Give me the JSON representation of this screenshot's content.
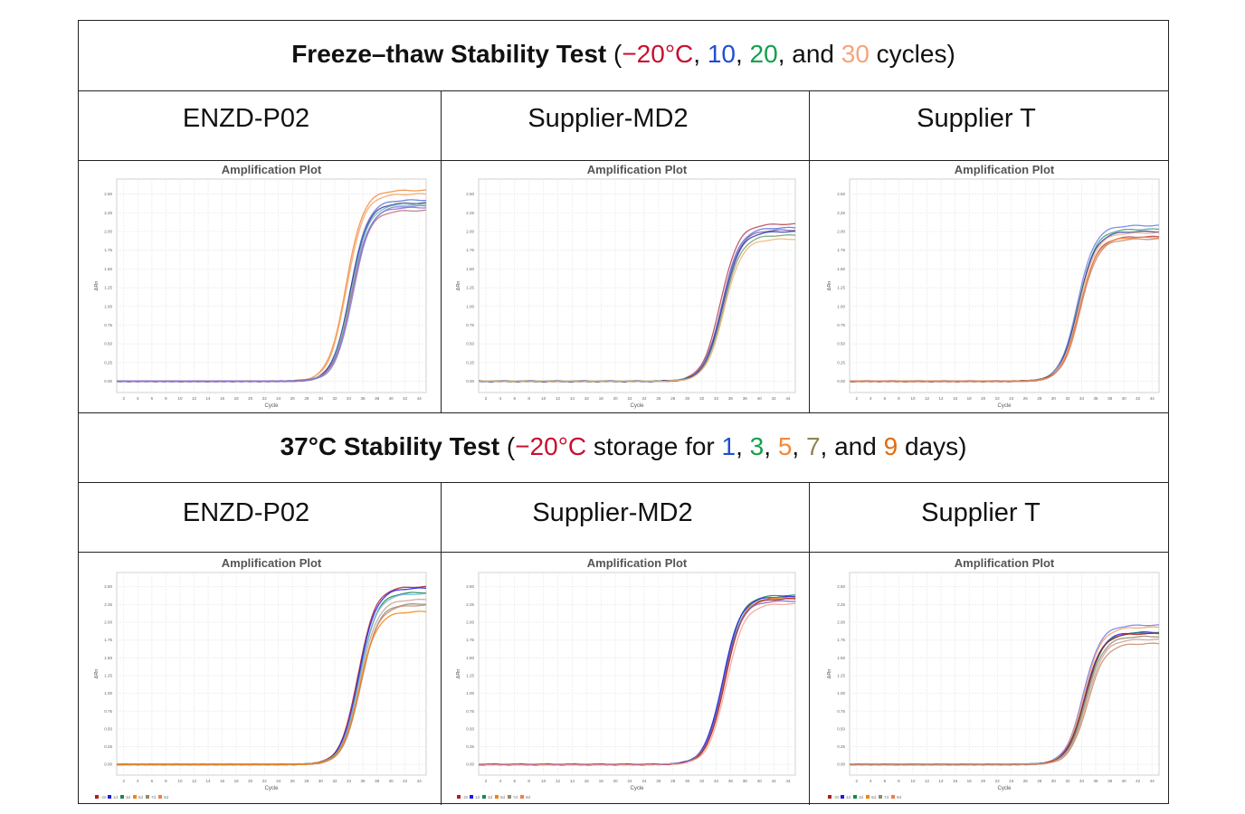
{
  "section1": {
    "bold": "Freeze–thaw Stability Test",
    "open": " (",
    "temp": "−20°C",
    "sep1": ", ",
    "v1": "10",
    "sep2": ", ",
    "v2": "20",
    "sep3": ", and ",
    "v3": "30",
    "tail": " cycles)",
    "colors": {
      "temp": "#c8102e",
      "v1": "#1f4fd1",
      "v2": "#12a14b",
      "v3": "#f4a57c"
    }
  },
  "section2": {
    "bold": "37°C Stability Test",
    "open": " (",
    "temp": "−20°C",
    "mid": " storage for ",
    "v1": "1",
    "sep1": ", ",
    "v2": "3",
    "sep2": ", ",
    "v3": "5",
    "sep3": ", ",
    "v4": "7",
    "sep4": ", and ",
    "v5": "9",
    "tail": " days)",
    "colors": {
      "temp": "#c8102e",
      "v1": "#1f4fd1",
      "v2": "#12a14b",
      "v3": "#f4883a",
      "v4": "#8e8458",
      "v5": "#e06c10"
    }
  },
  "products": [
    "ENZD-P02",
    "Supplier-MD2",
    "Supplier T"
  ],
  "chart_data": [
    {
      "type": "line",
      "title": "Amplification Plot",
      "xlabel": "Cycle",
      "ylabel": "ΔRn",
      "xlim": [
        1,
        45
      ],
      "ylim": [
        -0.15,
        2.7
      ],
      "xticks": [
        "2",
        "4",
        "6",
        "8",
        "10",
        "12",
        "14",
        "16",
        "18",
        "20",
        "22",
        "24",
        "26",
        "28",
        "30",
        "32",
        "34",
        "36",
        "38",
        "40",
        "42",
        "44"
      ],
      "yticks": [
        "0.00",
        "0.25",
        "0.50",
        "0.75",
        "1.00",
        "1.25",
        "1.50",
        "1.75",
        "2.00",
        "2.25",
        "2.50"
      ],
      "grid": true,
      "product": "ENZD-P02",
      "test": "freeze-thaw",
      "series": [
        {
          "color": "#f4883a",
          "ct": 33.6,
          "plateau": 2.55
        },
        {
          "color": "#f4a060",
          "ct": 33.7,
          "plateau": 2.5
        },
        {
          "color": "#5b6fd8",
          "ct": 34.2,
          "plateau": 2.42
        },
        {
          "color": "#2a3a9c",
          "ct": 34.2,
          "plateau": 2.38
        },
        {
          "color": "#6fb89a",
          "ct": 34.3,
          "plateau": 2.36
        },
        {
          "color": "#8a6fd0",
          "ct": 34.4,
          "plateau": 2.32
        },
        {
          "color": "#b5727a",
          "ct": 34.4,
          "plateau": 2.28
        },
        {
          "color": "#7a7ae8",
          "ct": 34.6,
          "plateau": 2.34
        }
      ]
    },
    {
      "type": "line",
      "title": "Amplification Plot",
      "xlabel": "Cycle",
      "ylabel": "ΔRn",
      "xlim": [
        1,
        45
      ],
      "ylim": [
        -0.15,
        2.7
      ],
      "xticks": [
        "2",
        "4",
        "6",
        "8",
        "10",
        "12",
        "14",
        "16",
        "18",
        "20",
        "22",
        "24",
        "26",
        "28",
        "30",
        "32",
        "34",
        "36",
        "38",
        "40",
        "42",
        "44"
      ],
      "yticks": [
        "0.00",
        "0.25",
        "0.50",
        "0.75",
        "1.00",
        "1.25",
        "1.50",
        "1.75",
        "2.00",
        "2.25",
        "2.50"
      ],
      "grid": true,
      "product": "Supplier-MD2",
      "test": "freeze-thaw",
      "series": [
        {
          "color": "#b5424e",
          "ct": 34.6,
          "plateau": 2.1
        },
        {
          "color": "#5b6fd8",
          "ct": 34.8,
          "plateau": 2.05
        },
        {
          "color": "#7a5ab8",
          "ct": 34.8,
          "plateau": 2.02
        },
        {
          "color": "#2a3a9c",
          "ct": 34.9,
          "plateau": 2.0
        },
        {
          "color": "#6fa06a",
          "ct": 35.0,
          "plateau": 1.95
        },
        {
          "color": "#f4b070",
          "ct": 35.1,
          "plateau": 1.9
        }
      ]
    },
    {
      "type": "line",
      "title": "Amplification Plot",
      "xlabel": "Cycle",
      "ylabel": "ΔRn",
      "xlim": [
        1,
        45
      ],
      "ylim": [
        -0.15,
        2.7
      ],
      "xticks": [
        "2",
        "4",
        "6",
        "8",
        "10",
        "12",
        "14",
        "16",
        "18",
        "20",
        "22",
        "24",
        "26",
        "28",
        "30",
        "32",
        "34",
        "36",
        "38",
        "40",
        "42",
        "44"
      ],
      "yticks": [
        "0.00",
        "0.25",
        "0.50",
        "0.75",
        "1.00",
        "1.25",
        "1.50",
        "1.75",
        "2.00",
        "2.25",
        "2.50"
      ],
      "grid": true,
      "product": "Supplier T",
      "test": "freeze-thaw",
      "series": [
        {
          "color": "#6f7ae8",
          "ct": 33.4,
          "plateau": 2.08
        },
        {
          "color": "#3aa070",
          "ct": 33.5,
          "plateau": 2.03
        },
        {
          "color": "#2a3a9c",
          "ct": 33.5,
          "plateau": 2.0
        },
        {
          "color": "#f4b090",
          "ct": 33.6,
          "plateau": 1.98
        },
        {
          "color": "#b5424e",
          "ct": 33.7,
          "plateau": 1.93
        },
        {
          "color": "#f4883a",
          "ct": 33.7,
          "plateau": 1.92
        },
        {
          "color": "#c88a6a",
          "ct": 33.8,
          "plateau": 1.9
        }
      ]
    },
    {
      "type": "line",
      "title": "Amplification Plot",
      "xlabel": "Cycle",
      "ylabel": "ΔRn",
      "xlim": [
        1,
        45
      ],
      "ylim": [
        -0.15,
        2.7
      ],
      "xticks": [
        "2",
        "4",
        "6",
        "8",
        "10",
        "12",
        "14",
        "16",
        "18",
        "20",
        "22",
        "24",
        "26",
        "28",
        "30",
        "32",
        "34",
        "36",
        "38",
        "40",
        "42",
        "44"
      ],
      "yticks": [
        "0.00",
        "0.25",
        "0.50",
        "0.75",
        "1.00",
        "1.25",
        "1.50",
        "1.75",
        "2.00",
        "2.25",
        "2.50"
      ],
      "grid": true,
      "legend": [
        "-20",
        "1d",
        "3d",
        "5d",
        "7d",
        "9d"
      ],
      "legend_colors": [
        "#b01c22",
        "#1a1aee",
        "#138a4a",
        "#f4840c",
        "#8e8a70",
        "#f47c4a"
      ],
      "product": "ENZD-P02",
      "test": "37C",
      "series": [
        {
          "color": "#b01c22",
          "ct": 35.3,
          "plateau": 2.5
        },
        {
          "color": "#1a1aee",
          "ct": 35.4,
          "plateau": 2.48
        },
        {
          "color": "#138a4a",
          "ct": 35.5,
          "plateau": 2.42
        },
        {
          "color": "#7ab0e0",
          "ct": 35.5,
          "plateau": 2.4
        },
        {
          "color": "#c8a090",
          "ct": 35.6,
          "plateau": 2.32
        },
        {
          "color": "#8e8a70",
          "ct": 35.7,
          "plateau": 2.26
        },
        {
          "color": "#c88a6a",
          "ct": 35.7,
          "plateau": 2.24
        },
        {
          "color": "#f4840c",
          "ct": 35.5,
          "plateau": 2.15
        }
      ]
    },
    {
      "type": "line",
      "title": "Amplification Plot",
      "xlabel": "Cycle",
      "ylabel": "ΔRn",
      "xlim": [
        1,
        45
      ],
      "ylim": [
        -0.15,
        2.7
      ],
      "xticks": [
        "2",
        "4",
        "6",
        "8",
        "10",
        "12",
        "14",
        "16",
        "18",
        "20",
        "22",
        "24",
        "26",
        "28",
        "30",
        "32",
        "34",
        "36",
        "38",
        "40",
        "42",
        "44"
      ],
      "yticks": [
        "0.00",
        "0.25",
        "0.50",
        "0.75",
        "1.00",
        "1.25",
        "1.50",
        "1.75",
        "2.00",
        "2.25",
        "2.50"
      ],
      "grid": true,
      "legend": [
        "-20",
        "1d",
        "3d",
        "5d",
        "7d",
        "9d"
      ],
      "legend_colors": [
        "#b01c22",
        "#1a1aee",
        "#138a4a",
        "#f4840c",
        "#8e8a70",
        "#f47c4a"
      ],
      "product": "Supplier-MD2",
      "test": "37C",
      "series": [
        {
          "color": "#138a4a",
          "ct": 35.0,
          "plateau": 2.38
        },
        {
          "color": "#1a1aee",
          "ct": 34.9,
          "plateau": 2.36
        },
        {
          "color": "#8e8a70",
          "ct": 35.1,
          "plateau": 2.35
        },
        {
          "color": "#f4840c",
          "ct": 35.2,
          "plateau": 2.34
        },
        {
          "color": "#b01c22",
          "ct": 35.2,
          "plateau": 2.33
        },
        {
          "color": "#7a5ab8",
          "ct": 35.0,
          "plateau": 2.3
        },
        {
          "color": "#f4a090",
          "ct": 35.4,
          "plateau": 2.26
        }
      ]
    },
    {
      "type": "line",
      "title": "Amplification Plot",
      "xlabel": "Cycle",
      "ylabel": "ΔRn",
      "xlim": [
        1,
        45
      ],
      "ylim": [
        -0.15,
        2.7
      ],
      "xticks": [
        "2",
        "4",
        "6",
        "8",
        "10",
        "12",
        "14",
        "16",
        "18",
        "20",
        "22",
        "24",
        "26",
        "28",
        "30",
        "32",
        "34",
        "36",
        "38",
        "40",
        "42",
        "44"
      ],
      "yticks": [
        "0.00",
        "0.25",
        "0.50",
        "0.75",
        "1.00",
        "1.25",
        "1.50",
        "1.75",
        "2.00",
        "2.25",
        "2.50"
      ],
      "grid": true,
      "legend": [
        "-20",
        "1d",
        "3d",
        "5d",
        "7d",
        "9d"
      ],
      "legend_colors": [
        "#b01c22",
        "#1a1aee",
        "#138a4a",
        "#f4840c",
        "#8e8a70",
        "#f47c4a"
      ],
      "product": "Supplier T",
      "test": "37C",
      "series": [
        {
          "color": "#6f7ae8",
          "ct": 34.2,
          "plateau": 1.96
        },
        {
          "color": "#f4a060",
          "ct": 34.3,
          "plateau": 1.93
        },
        {
          "color": "#1a1aee",
          "ct": 34.4,
          "plateau": 1.86
        },
        {
          "color": "#138a4a",
          "ct": 34.5,
          "plateau": 1.85
        },
        {
          "color": "#b01c22",
          "ct": 34.4,
          "plateau": 1.84
        },
        {
          "color": "#8e8a70",
          "ct": 34.6,
          "plateau": 1.8
        },
        {
          "color": "#c8a090",
          "ct": 34.7,
          "plateau": 1.76
        },
        {
          "color": "#c88a6a",
          "ct": 34.8,
          "plateau": 1.7
        }
      ]
    }
  ]
}
